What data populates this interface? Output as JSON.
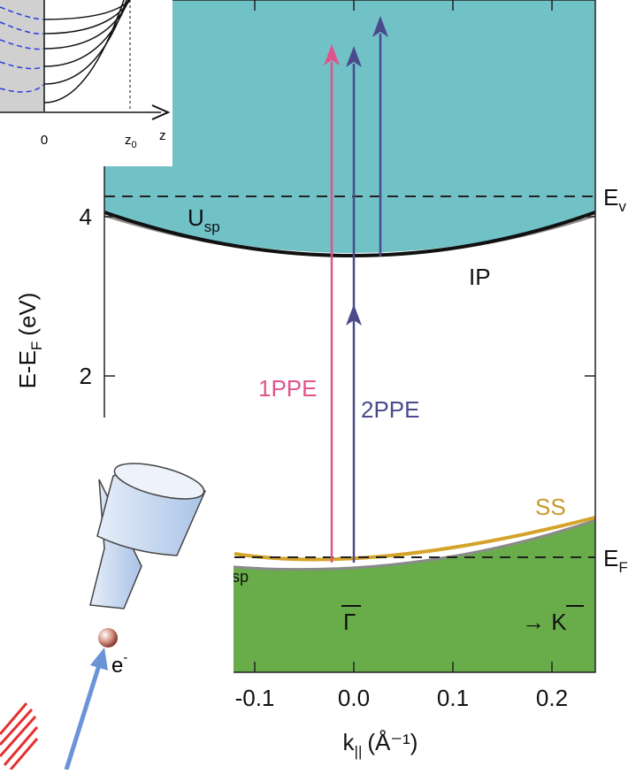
{
  "axes": {
    "y": {
      "title": {
        "text": "E-E",
        "sub": "F",
        "unit": "(eV)"
      },
      "ticks": [
        2,
        4
      ]
    },
    "x": {
      "title": {
        "text": "k",
        "sub": "||",
        "unit": "(Å⁻¹)"
      },
      "ticks": [
        -0.1,
        {
          "value": 0,
          "label": "0.0"
        },
        0.1,
        0.2
      ]
    }
  },
  "labels": {
    "u_sp": {
      "text": "U",
      "sub": "sp"
    },
    "ip": "IP",
    "e_v": {
      "text": "E",
      "sub": "v"
    },
    "e_f": {
      "text": "E",
      "sub": "F"
    },
    "ss": "SS",
    "sp_lower": "sp",
    "gamma": "Γ",
    "k_point": "→ K",
    "ppe1": "1PPE",
    "ppe2": "2PPE"
  },
  "inset": {
    "origin": "0",
    "z0": {
      "text": "z",
      "sub": "0"
    },
    "z": "z"
  },
  "detector": {
    "electron": {
      "text": "e",
      "sup": "-"
    }
  }
}
